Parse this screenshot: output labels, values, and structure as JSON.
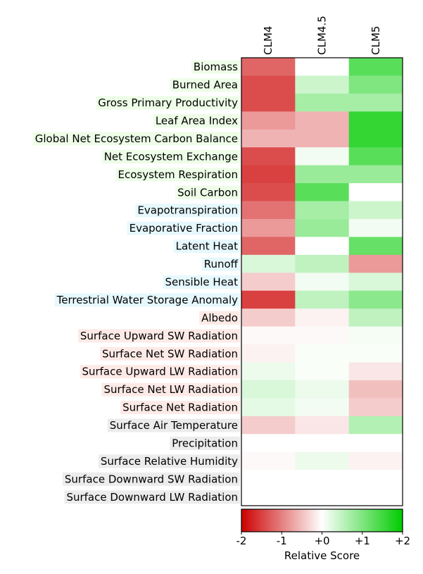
{
  "chart_data": {
    "type": "heatmap",
    "columns": [
      "CLM4",
      "CLM4.5",
      "CLM5"
    ],
    "rows": [
      {
        "label": "Biomass",
        "group": "ecosystem",
        "values": [
          -1.2,
          0.0,
          1.3
        ]
      },
      {
        "label": "Burned Area",
        "group": "ecosystem",
        "values": [
          -1.4,
          0.4,
          1.0
        ]
      },
      {
        "label": "Gross Primary Productivity",
        "group": "ecosystem",
        "values": [
          -1.4,
          0.7,
          0.7
        ]
      },
      {
        "label": "Leaf Area Index",
        "group": "ecosystem",
        "values": [
          -0.8,
          -0.6,
          1.6
        ]
      },
      {
        "label": "Global Net Ecosystem Carbon Balance",
        "group": "ecosystem",
        "values": [
          -0.6,
          -0.6,
          1.6
        ]
      },
      {
        "label": "Net Ecosystem Exchange",
        "group": "ecosystem",
        "values": [
          -1.4,
          0.1,
          1.3
        ]
      },
      {
        "label": "Ecosystem Respiration",
        "group": "ecosystem",
        "values": [
          -1.5,
          0.8,
          0.8
        ]
      },
      {
        "label": "Soil Carbon",
        "group": "ecosystem",
        "values": [
          -1.4,
          1.3,
          0.0
        ]
      },
      {
        "label": "Evapotranspiration",
        "group": "hydrology",
        "values": [
          -1.1,
          0.7,
          0.4
        ]
      },
      {
        "label": "Evaporative Fraction",
        "group": "hydrology",
        "values": [
          -0.8,
          0.8,
          0.1
        ]
      },
      {
        "label": "Latent Heat",
        "group": "hydrology",
        "values": [
          -1.2,
          0.0,
          1.2
        ]
      },
      {
        "label": "Runoff",
        "group": "hydrology",
        "values": [
          0.3,
          0.5,
          -0.8
        ]
      },
      {
        "label": "Sensible Heat",
        "group": "hydrology",
        "values": [
          -0.4,
          0.1,
          0.3
        ]
      },
      {
        "label": "Terrestrial Water Storage Anomaly",
        "group": "hydrology",
        "values": [
          -1.5,
          0.5,
          0.9
        ]
      },
      {
        "label": "Albedo",
        "group": "radiation",
        "values": [
          -0.4,
          -0.1,
          0.5
        ]
      },
      {
        "label": "Surface Upward SW Radiation",
        "group": "radiation",
        "values": [
          -0.05,
          -0.05,
          0.08
        ]
      },
      {
        "label": "Surface Net SW Radiation",
        "group": "radiation",
        "values": [
          -0.1,
          0.05,
          0.05
        ]
      },
      {
        "label": "Surface Upward LW Radiation",
        "group": "radiation",
        "values": [
          0.15,
          0.05,
          -0.2
        ]
      },
      {
        "label": "Surface Net LW Radiation",
        "group": "radiation",
        "values": [
          0.3,
          0.15,
          -0.5
        ]
      },
      {
        "label": "Surface Net Radiation",
        "group": "radiation",
        "values": [
          0.2,
          0.1,
          -0.4
        ]
      },
      {
        "label": "Surface Air Temperature",
        "group": "forcing",
        "values": [
          -0.4,
          -0.2,
          0.6
        ]
      },
      {
        "label": "Precipitation",
        "group": "forcing",
        "values": [
          0.0,
          0.0,
          0.0
        ]
      },
      {
        "label": "Surface Relative Humidity",
        "group": "forcing",
        "values": [
          -0.05,
          0.15,
          -0.1
        ]
      },
      {
        "label": "Surface Downward SW Radiation",
        "group": "forcing",
        "values": [
          null,
          null,
          null
        ]
      },
      {
        "label": "Surface Downward LW Radiation",
        "group": "forcing",
        "values": [
          null,
          null,
          null
        ]
      }
    ],
    "group_colors": {
      "ecosystem": "#edfde7",
      "hydrology": "#e6f8fd",
      "radiation": "#fdeae6",
      "forcing": "#ececec"
    },
    "colormap": {
      "low": "#cc0000",
      "mid": "#ffffff",
      "high": "#00cc00"
    },
    "colorbar": {
      "range": [
        -2,
        2
      ],
      "tick_labels": [
        "-2",
        "-1",
        "+0",
        "+1",
        "+2"
      ],
      "label": "Relative Score"
    }
  }
}
